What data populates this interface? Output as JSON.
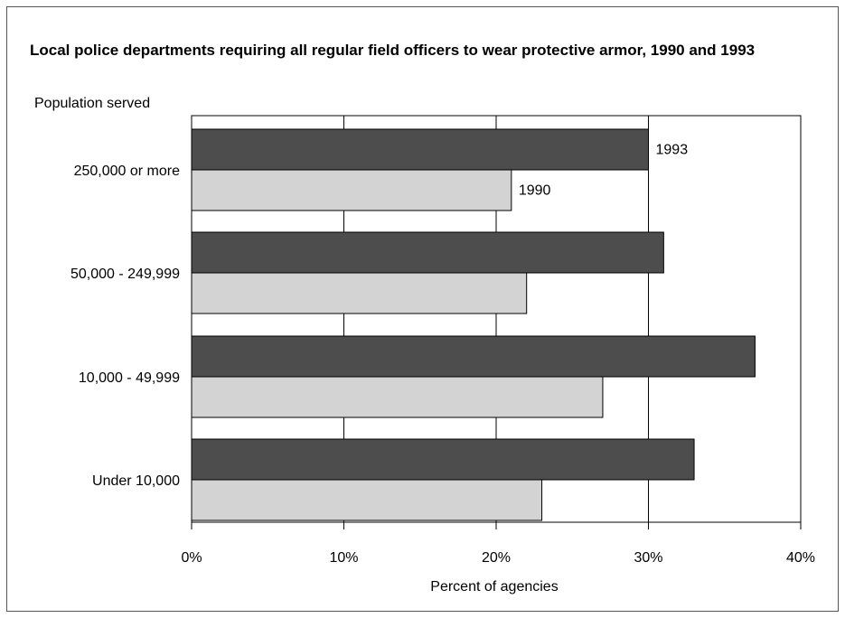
{
  "chart_data": {
    "type": "bar",
    "orientation": "horizontal",
    "title": "Local police departments requiring all regular field officers to wear protective armor, 1990 and 1993",
    "ylabel": "Population served",
    "xlabel": "Percent of agencies",
    "categories": [
      "250,000 or more",
      "50,000 - 249,999",
      "10,000 - 49,999",
      "Under 10,000"
    ],
    "series": [
      {
        "name": "1993",
        "values": [
          30,
          31,
          37,
          33
        ],
        "color": "#4d4d4d"
      },
      {
        "name": "1990",
        "values": [
          21,
          22,
          27,
          23
        ],
        "color": "#d3d3d3"
      }
    ],
    "xlim": [
      0,
      40
    ],
    "xticks": [
      0,
      10,
      20,
      30,
      40
    ],
    "xtick_labels": [
      "0%",
      "10%",
      "20%",
      "30%",
      "40%"
    ],
    "grid": "vertical",
    "series_labels_position": "beside first category bars"
  }
}
